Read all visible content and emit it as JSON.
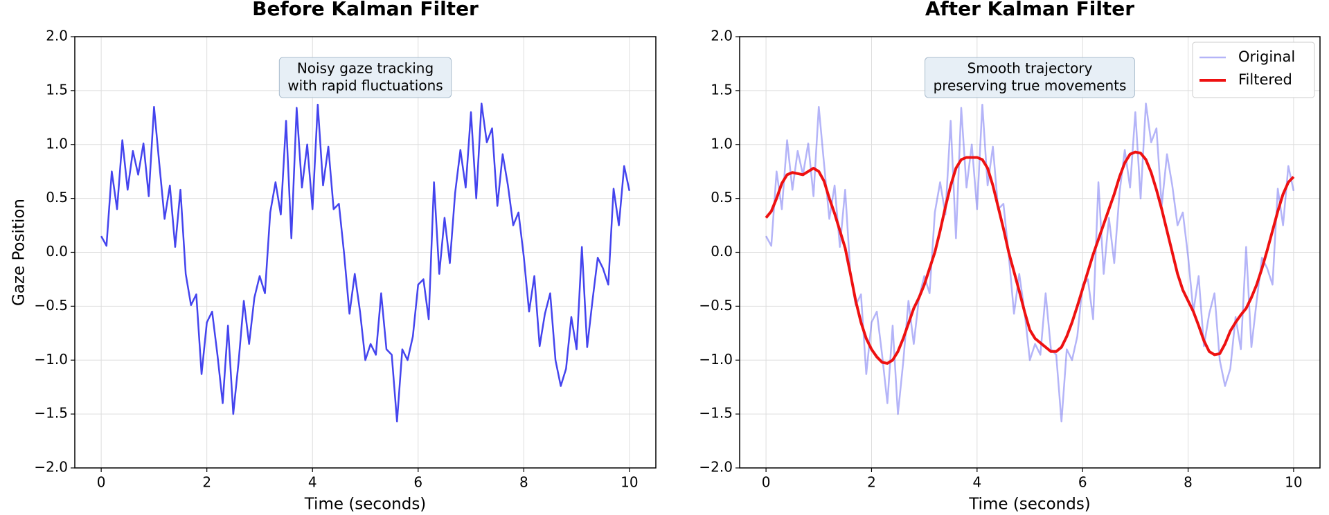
{
  "chart_data": [
    {
      "type": "line",
      "title": "Before Kalman Filter",
      "xlabel": "Time (seconds)",
      "ylabel": "Gaze Position",
      "annotation": [
        "Noisy gaze tracking",
        "with rapid fluctuations"
      ],
      "xlim": [
        -0.5,
        10.5
      ],
      "ylim": [
        -2,
        2
      ],
      "xticks": [
        0,
        2,
        4,
        6,
        8,
        10
      ],
      "yticks": [
        {
          "value": -2,
          "label": "−2.0"
        },
        {
          "value": -1.5,
          "label": "−1.5"
        },
        {
          "value": -1,
          "label": "−1.0"
        },
        {
          "value": -0.5,
          "label": "−0.5"
        },
        {
          "value": 0,
          "label": "0.0"
        },
        {
          "value": 0.5,
          "label": "0.5"
        },
        {
          "value": 1,
          "label": "1.0"
        },
        {
          "value": 1.5,
          "label": "1.5"
        },
        {
          "value": 2,
          "label": "2.0"
        }
      ],
      "grid": true,
      "x": [
        0,
        0.1,
        0.2,
        0.3,
        0.4,
        0.5,
        0.6,
        0.7,
        0.8,
        0.9,
        1,
        1.1,
        1.2,
        1.3,
        1.4,
        1.5,
        1.6,
        1.7,
        1.8,
        1.9,
        2,
        2.1,
        2.2,
        2.3,
        2.4,
        2.5,
        2.6,
        2.7,
        2.8,
        2.9,
        3,
        3.1,
        3.2,
        3.3,
        3.4,
        3.5,
        3.6,
        3.7,
        3.8,
        3.9,
        4,
        4.1,
        4.2,
        4.3,
        4.4,
        4.5,
        4.6,
        4.7,
        4.8,
        4.9,
        5,
        5.1,
        5.2,
        5.3,
        5.4,
        5.5,
        5.6,
        5.7,
        5.8,
        5.9,
        6,
        6.1,
        6.2,
        6.3,
        6.4,
        6.5,
        6.6,
        6.7,
        6.8,
        6.9,
        7,
        7.1,
        7.2,
        7.3,
        7.4,
        7.5,
        7.6,
        7.7,
        7.8,
        7.9,
        8,
        8.1,
        8.2,
        8.3,
        8.4,
        8.5,
        8.6,
        8.7,
        8.8,
        8.9,
        9,
        9.1,
        9.2,
        9.3,
        9.4,
        9.5,
        9.6,
        9.7,
        9.8,
        9.9,
        10
      ],
      "series": [
        {
          "color": "#4444ee",
          "opacity": 1,
          "width": 2.5,
          "values": [
            0.15,
            0.06,
            0.75,
            0.4,
            1.04,
            0.58,
            0.94,
            0.72,
            1.01,
            0.52,
            1.35,
            0.82,
            0.31,
            0.62,
            0.05,
            0.58,
            -0.2,
            -0.49,
            -0.39,
            -1.13,
            -0.65,
            -0.55,
            -0.95,
            -1.4,
            -0.68,
            -1.5,
            -1.02,
            -0.45,
            -0.85,
            -0.42,
            -0.22,
            -0.38,
            0.37,
            0.65,
            0.35,
            1.22,
            0.13,
            1.34,
            0.6,
            1.0,
            0.4,
            1.37,
            0.62,
            0.98,
            0.4,
            0.45,
            -0.02,
            -0.57,
            -0.2,
            -0.55,
            -1.0,
            -0.85,
            -0.95,
            -0.38,
            -0.9,
            -0.95,
            -1.57,
            -0.9,
            -1.0,
            -0.78,
            -0.3,
            -0.25,
            -0.62,
            0.65,
            -0.2,
            0.32,
            -0.1,
            0.55,
            0.95,
            0.6,
            1.3,
            0.5,
            1.38,
            1.02,
            1.15,
            0.43,
            0.91,
            0.62,
            0.25,
            0.37,
            -0.04,
            -0.55,
            -0.22,
            -0.87,
            -0.57,
            -0.38,
            -1.0,
            -1.24,
            -1.08,
            -0.6,
            -0.9,
            0.05,
            -0.88,
            -0.45,
            -0.05,
            -0.15,
            -0.3,
            0.59,
            0.25,
            0.8,
            0.57
          ]
        }
      ]
    },
    {
      "type": "line",
      "title": "After Kalman Filter",
      "xlabel": "Time (seconds)",
      "annotation": [
        "Smooth trajectory",
        "preserving true movements"
      ],
      "xlim": [
        -0.5,
        10.5
      ],
      "ylim": [
        -2,
        2
      ],
      "xticks": [
        0,
        2,
        4,
        6,
        8,
        10
      ],
      "yticks": [
        {
          "value": -2,
          "label": "−2.0"
        },
        {
          "value": -1.5,
          "label": "−1.5"
        },
        {
          "value": -1,
          "label": "−1.0"
        },
        {
          "value": -0.5,
          "label": "−0.5"
        },
        {
          "value": 0,
          "label": "0.0"
        },
        {
          "value": 0.5,
          "label": "0.5"
        },
        {
          "value": 1,
          "label": "1.0"
        },
        {
          "value": 1.5,
          "label": "1.5"
        },
        {
          "value": 2,
          "label": "2.0"
        }
      ],
      "grid": true,
      "legend": "upper right",
      "x": [
        0,
        0.1,
        0.2,
        0.3,
        0.4,
        0.5,
        0.6,
        0.7,
        0.8,
        0.9,
        1,
        1.1,
        1.2,
        1.3,
        1.4,
        1.5,
        1.6,
        1.7,
        1.8,
        1.9,
        2,
        2.1,
        2.2,
        2.3,
        2.4,
        2.5,
        2.6,
        2.7,
        2.8,
        2.9,
        3,
        3.1,
        3.2,
        3.3,
        3.4,
        3.5,
        3.6,
        3.7,
        3.8,
        3.9,
        4,
        4.1,
        4.2,
        4.3,
        4.4,
        4.5,
        4.6,
        4.7,
        4.8,
        4.9,
        5,
        5.1,
        5.2,
        5.3,
        5.4,
        5.5,
        5.6,
        5.7,
        5.8,
        5.9,
        6,
        6.1,
        6.2,
        6.3,
        6.4,
        6.5,
        6.6,
        6.7,
        6.8,
        6.9,
        7,
        7.1,
        7.2,
        7.3,
        7.4,
        7.5,
        7.6,
        7.7,
        7.8,
        7.9,
        8,
        8.1,
        8.2,
        8.3,
        8.4,
        8.5,
        8.6,
        8.7,
        8.8,
        8.9,
        9,
        9.1,
        9.2,
        9.3,
        9.4,
        9.5,
        9.6,
        9.7,
        9.8,
        9.9,
        10
      ],
      "series": [
        {
          "name": "Original",
          "color": "#4444ee",
          "opacity": 0.4,
          "width": 2.5,
          "values": [
            0.15,
            0.06,
            0.75,
            0.4,
            1.04,
            0.58,
            0.94,
            0.72,
            1.01,
            0.52,
            1.35,
            0.82,
            0.31,
            0.62,
            0.05,
            0.58,
            -0.2,
            -0.49,
            -0.39,
            -1.13,
            -0.65,
            -0.55,
            -0.95,
            -1.4,
            -0.68,
            -1.5,
            -1.02,
            -0.45,
            -0.85,
            -0.42,
            -0.22,
            -0.38,
            0.37,
            0.65,
            0.35,
            1.22,
            0.13,
            1.34,
            0.6,
            1.0,
            0.4,
            1.37,
            0.62,
            0.98,
            0.4,
            0.45,
            -0.02,
            -0.57,
            -0.2,
            -0.55,
            -1.0,
            -0.85,
            -0.95,
            -0.38,
            -0.9,
            -0.95,
            -1.57,
            -0.9,
            -1.0,
            -0.78,
            -0.3,
            -0.25,
            -0.62,
            0.65,
            -0.2,
            0.32,
            -0.1,
            0.55,
            0.95,
            0.6,
            1.3,
            0.5,
            1.38,
            1.02,
            1.15,
            0.43,
            0.91,
            0.62,
            0.25,
            0.37,
            -0.04,
            -0.55,
            -0.22,
            -0.87,
            -0.57,
            -0.38,
            -1.0,
            -1.24,
            -1.08,
            -0.6,
            -0.9,
            0.05,
            -0.88,
            -0.45,
            -0.05,
            -0.15,
            -0.3,
            0.59,
            0.25,
            0.8,
            0.57
          ]
        },
        {
          "name": "Filtered",
          "color": "#ee1111",
          "opacity": 1,
          "width": 4,
          "values": [
            0.32,
            0.38,
            0.5,
            0.64,
            0.72,
            0.74,
            0.73,
            0.72,
            0.75,
            0.78,
            0.75,
            0.66,
            0.5,
            0.36,
            0.2,
            0.04,
            -0.2,
            -0.45,
            -0.65,
            -0.8,
            -0.9,
            -0.97,
            -1.02,
            -1.03,
            -1.0,
            -0.92,
            -0.8,
            -0.66,
            -0.52,
            -0.42,
            -0.3,
            -0.15,
            0.0,
            0.2,
            0.42,
            0.62,
            0.78,
            0.86,
            0.88,
            0.88,
            0.88,
            0.86,
            0.78,
            0.62,
            0.42,
            0.22,
            0.0,
            -0.18,
            -0.36,
            -0.55,
            -0.72,
            -0.8,
            -0.84,
            -0.88,
            -0.92,
            -0.92,
            -0.88,
            -0.78,
            -0.65,
            -0.5,
            -0.34,
            -0.18,
            -0.02,
            0.12,
            0.26,
            0.4,
            0.54,
            0.7,
            0.83,
            0.91,
            0.93,
            0.92,
            0.86,
            0.74,
            0.58,
            0.4,
            0.2,
            0.0,
            -0.2,
            -0.35,
            -0.45,
            -0.55,
            -0.68,
            -0.82,
            -0.92,
            -0.95,
            -0.94,
            -0.85,
            -0.73,
            -0.65,
            -0.58,
            -0.52,
            -0.42,
            -0.3,
            -0.15,
            0.02,
            0.2,
            0.38,
            0.54,
            0.65,
            0.7
          ]
        }
      ]
    }
  ]
}
